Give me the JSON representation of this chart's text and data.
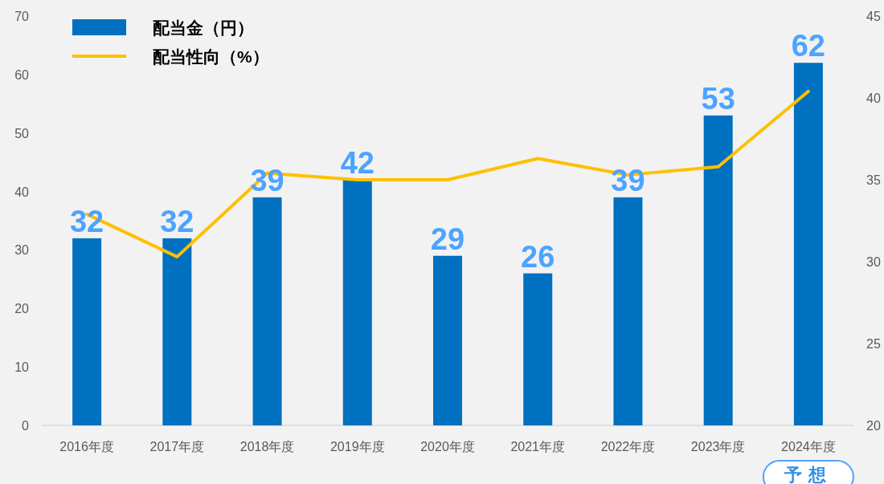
{
  "chart_data": {
    "type": "bar",
    "categories": [
      "2016年度",
      "2017年度",
      "2018年度",
      "2019年度",
      "2020年度",
      "2021年度",
      "2022年度",
      "2023年度",
      "2024年度"
    ],
    "series": [
      {
        "name": "配当金（円）",
        "color": "#0070c0",
        "values": [
          32,
          32,
          39,
          42,
          29,
          26,
          39,
          53,
          62
        ],
        "value_labels": [
          "32",
          "32",
          "39",
          "42",
          "29",
          "26",
          "39",
          "53",
          "62"
        ]
      },
      {
        "name": "配当性向（%）",
        "type": "line",
        "axis": "y2",
        "color": "#ffc000",
        "values": [
          32.9,
          30.3,
          35.4,
          35.0,
          35.0,
          36.3,
          35.3,
          35.8,
          40.4
        ]
      }
    ],
    "ylim": [
      0,
      70
    ],
    "yticks": [
      0,
      10,
      20,
      30,
      40,
      50,
      60,
      70
    ],
    "y2lim": [
      20,
      45
    ],
    "y2ticks": [
      20,
      25,
      30,
      35,
      40,
      45
    ],
    "legend": "top left",
    "grid": false,
    "marker": "none",
    "line_style": "solid",
    "annotations": [
      "予想"
    ]
  }
}
